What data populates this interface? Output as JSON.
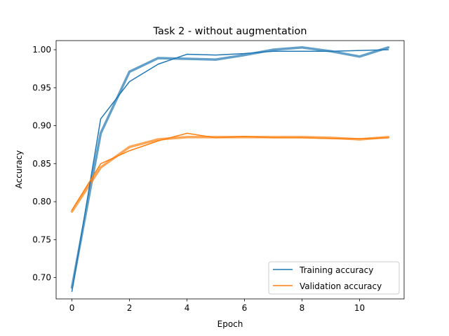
{
  "chart_data": {
    "type": "line",
    "title": "Task 2 - without augmentation",
    "xlabel": "Epoch",
    "ylabel": "Accuracy",
    "xlim": [
      -0.55,
      11.55
    ],
    "ylim": [
      0.672,
      1.012
    ],
    "xticks": [
      0,
      2,
      4,
      6,
      8,
      10
    ],
    "xtick_labels": [
      "0",
      "2",
      "4",
      "6",
      "8",
      "10"
    ],
    "yticks": [
      0.7,
      0.75,
      0.8,
      0.85,
      0.9,
      0.95,
      1.0
    ],
    "ytick_labels": [
      "0.70",
      "0.75",
      "0.80",
      "0.85",
      "0.90",
      "0.95",
      "1.00"
    ],
    "grid": false,
    "legend_position": "lower-right",
    "x": [
      0,
      1,
      2,
      3,
      4,
      5,
      6,
      7,
      8,
      9,
      10,
      11
    ],
    "series": [
      {
        "name": "Training accuracy",
        "color": "#1f77b4",
        "values": [
          0.682,
          0.909,
          0.958,
          0.981,
          0.994,
          0.993,
          0.995,
          0.998,
          0.998,
          0.998,
          0.999,
          1.0
        ]
      },
      {
        "name": "Validation accuracy",
        "color": "#ff7f0e",
        "values": [
          0.789,
          0.85,
          0.867,
          0.88,
          0.89,
          0.884,
          0.886,
          0.884,
          0.884,
          0.883,
          0.883,
          0.884
        ]
      }
    ],
    "smoothed_series": [
      {
        "color": "#1f77b4",
        "values": [
          0.687,
          0.89,
          0.971,
          0.989,
          0.988,
          0.987,
          0.993,
          1.0,
          1.003,
          0.998,
          0.991,
          1.003
        ]
      },
      {
        "color": "#ff7f0e",
        "values": [
          0.787,
          0.845,
          0.872,
          0.882,
          0.885,
          0.885,
          0.885,
          0.885,
          0.885,
          0.884,
          0.882,
          0.885
        ]
      }
    ]
  }
}
